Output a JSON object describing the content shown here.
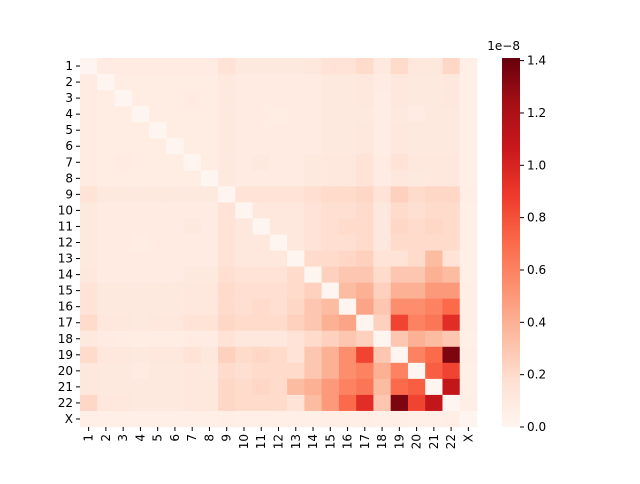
{
  "chart_data": {
    "type": "heatmap",
    "categories": [
      "1",
      "2",
      "3",
      "4",
      "5",
      "6",
      "7",
      "8",
      "9",
      "10",
      "11",
      "12",
      "13",
      "14",
      "15",
      "16",
      "17",
      "18",
      "19",
      "20",
      "21",
      "22",
      "X"
    ],
    "values": [
      [
        0,
        0.08,
        0.08,
        0.08,
        0.08,
        0.08,
        0.08,
        0.08,
        0.15,
        0.1,
        0.1,
        0.1,
        0.1,
        0.12,
        0.15,
        0.15,
        0.2,
        0.1,
        0.2,
        0.12,
        0.12,
        0.22,
        0.05
      ],
      [
        0.08,
        0,
        0.07,
        0.07,
        0.07,
        0.07,
        0.07,
        0.07,
        0.1,
        0.08,
        0.08,
        0.08,
        0.08,
        0.08,
        0.1,
        0.1,
        0.12,
        0.08,
        0.12,
        0.1,
        0.1,
        0.12,
        0.05
      ],
      [
        0.08,
        0.07,
        0,
        0.07,
        0.07,
        0.07,
        0.08,
        0.07,
        0.1,
        0.08,
        0.08,
        0.08,
        0.08,
        0.08,
        0.1,
        0.1,
        0.12,
        0.07,
        0.12,
        0.1,
        0.1,
        0.12,
        0.05
      ],
      [
        0.08,
        0.07,
        0.07,
        0,
        0.07,
        0.07,
        0.07,
        0.07,
        0.1,
        0.08,
        0.08,
        0.07,
        0.08,
        0.08,
        0.1,
        0.1,
        0.1,
        0.07,
        0.1,
        0.08,
        0.1,
        0.1,
        0.05
      ],
      [
        0.08,
        0.07,
        0.07,
        0.07,
        0,
        0.07,
        0.07,
        0.07,
        0.1,
        0.08,
        0.08,
        0.08,
        0.08,
        0.08,
        0.1,
        0.1,
        0.12,
        0.07,
        0.12,
        0.1,
        0.1,
        0.1,
        0.05
      ],
      [
        0.08,
        0.07,
        0.07,
        0.07,
        0.07,
        0,
        0.07,
        0.07,
        0.1,
        0.08,
        0.08,
        0.08,
        0.08,
        0.08,
        0.1,
        0.1,
        0.12,
        0.07,
        0.12,
        0.1,
        0.1,
        0.1,
        0.05
      ],
      [
        0.08,
        0.07,
        0.08,
        0.07,
        0.07,
        0.07,
        0,
        0.07,
        0.1,
        0.08,
        0.1,
        0.08,
        0.08,
        0.1,
        0.12,
        0.12,
        0.15,
        0.08,
        0.15,
        0.12,
        0.12,
        0.12,
        0.05
      ],
      [
        0.08,
        0.07,
        0.07,
        0.07,
        0.07,
        0.07,
        0.07,
        0,
        0.1,
        0.08,
        0.08,
        0.08,
        0.08,
        0.1,
        0.12,
        0.12,
        0.15,
        0.08,
        0.12,
        0.1,
        0.12,
        0.12,
        0.05
      ],
      [
        0.15,
        0.1,
        0.1,
        0.1,
        0.1,
        0.1,
        0.1,
        0.1,
        0,
        0.15,
        0.15,
        0.15,
        0.15,
        0.18,
        0.2,
        0.2,
        0.22,
        0.15,
        0.25,
        0.2,
        0.22,
        0.22,
        0.06
      ],
      [
        0.1,
        0.08,
        0.08,
        0.08,
        0.08,
        0.08,
        0.08,
        0.08,
        0.15,
        0,
        0.12,
        0.12,
        0.12,
        0.15,
        0.18,
        0.18,
        0.2,
        0.12,
        0.2,
        0.18,
        0.2,
        0.2,
        0.05
      ],
      [
        0.1,
        0.08,
        0.08,
        0.08,
        0.08,
        0.08,
        0.1,
        0.08,
        0.15,
        0.12,
        0,
        0.12,
        0.12,
        0.15,
        0.18,
        0.2,
        0.2,
        0.12,
        0.22,
        0.2,
        0.22,
        0.2,
        0.05
      ],
      [
        0.1,
        0.08,
        0.08,
        0.07,
        0.08,
        0.08,
        0.08,
        0.08,
        0.15,
        0.12,
        0.12,
        0,
        0.12,
        0.15,
        0.18,
        0.18,
        0.2,
        0.12,
        0.2,
        0.2,
        0.2,
        0.2,
        0.05
      ],
      [
        0.1,
        0.08,
        0.08,
        0.08,
        0.08,
        0.08,
        0.08,
        0.08,
        0.15,
        0.12,
        0.12,
        0.12,
        0,
        0.2,
        0.2,
        0.22,
        0.25,
        0.15,
        0.15,
        0.2,
        0.35,
        0.15,
        0.05
      ],
      [
        0.12,
        0.08,
        0.08,
        0.08,
        0.08,
        0.08,
        0.1,
        0.1,
        0.18,
        0.15,
        0.15,
        0.15,
        0.2,
        0,
        0.25,
        0.3,
        0.3,
        0.2,
        0.3,
        0.3,
        0.4,
        0.35,
        0.05
      ],
      [
        0.15,
        0.1,
        0.1,
        0.1,
        0.1,
        0.1,
        0.12,
        0.12,
        0.2,
        0.18,
        0.18,
        0.18,
        0.2,
        0.25,
        0,
        0.35,
        0.4,
        0.25,
        0.4,
        0.4,
        0.5,
        0.5,
        0.06
      ],
      [
        0.15,
        0.1,
        0.1,
        0.1,
        0.1,
        0.1,
        0.12,
        0.12,
        0.2,
        0.18,
        0.2,
        0.18,
        0.22,
        0.3,
        0.35,
        0,
        0.45,
        0.3,
        0.55,
        0.55,
        0.6,
        0.7,
        0.06
      ],
      [
        0.2,
        0.12,
        0.12,
        0.1,
        0.12,
        0.12,
        0.15,
        0.15,
        0.22,
        0.2,
        0.2,
        0.2,
        0.25,
        0.3,
        0.4,
        0.45,
        0,
        0.25,
        0.85,
        0.6,
        0.65,
        0.95,
        0.06
      ],
      [
        0.1,
        0.08,
        0.07,
        0.07,
        0.07,
        0.07,
        0.08,
        0.08,
        0.15,
        0.12,
        0.12,
        0.12,
        0.15,
        0.2,
        0.25,
        0.3,
        0.25,
        0,
        0.3,
        0.4,
        0.35,
        0.3,
        0.05
      ],
      [
        0.2,
        0.12,
        0.12,
        0.1,
        0.12,
        0.12,
        0.15,
        0.12,
        0.25,
        0.2,
        0.22,
        0.2,
        0.15,
        0.3,
        0.4,
        0.55,
        0.85,
        0.3,
        0,
        0.6,
        0.7,
        1.35,
        0.06
      ],
      [
        0.12,
        0.1,
        0.1,
        0.08,
        0.1,
        0.1,
        0.12,
        0.1,
        0.2,
        0.18,
        0.2,
        0.2,
        0.2,
        0.3,
        0.4,
        0.55,
        0.6,
        0.4,
        0.6,
        0,
        0.75,
        0.85,
        0.05
      ],
      [
        0.12,
        0.1,
        0.1,
        0.1,
        0.1,
        0.1,
        0.12,
        0.12,
        0.22,
        0.2,
        0.22,
        0.2,
        0.35,
        0.4,
        0.5,
        0.6,
        0.65,
        0.35,
        0.7,
        0.75,
        0,
        1.1,
        0.05
      ],
      [
        0.22,
        0.12,
        0.12,
        0.1,
        0.1,
        0.1,
        0.12,
        0.12,
        0.22,
        0.2,
        0.2,
        0.2,
        0.15,
        0.35,
        0.5,
        0.7,
        0.95,
        0.3,
        1.35,
        0.85,
        1.1,
        0,
        0.06
      ],
      [
        0.05,
        0.05,
        0.05,
        0.05,
        0.05,
        0.05,
        0.05,
        0.05,
        0.06,
        0.05,
        0.05,
        0.05,
        0.05,
        0.05,
        0.06,
        0.06,
        0.06,
        0.05,
        0.06,
        0.05,
        0.05,
        0.06,
        0
      ]
    ],
    "colormap": "Reds",
    "clim": [
      0,
      1.41
    ],
    "cticks": [
      {
        "value": 0,
        "label": "0.0"
      },
      {
        "value": 0.2,
        "label": "0.2"
      },
      {
        "value": 0.4,
        "label": "0.4"
      },
      {
        "value": 0.6,
        "label": "0.6"
      },
      {
        "value": 0.8,
        "label": "0.8"
      },
      {
        "value": 1,
        "label": "1.0"
      },
      {
        "value": 1.2,
        "label": "1.2"
      },
      {
        "value": 1.4,
        "label": "1.4"
      }
    ],
    "colorbar_offset": "1e−8"
  }
}
